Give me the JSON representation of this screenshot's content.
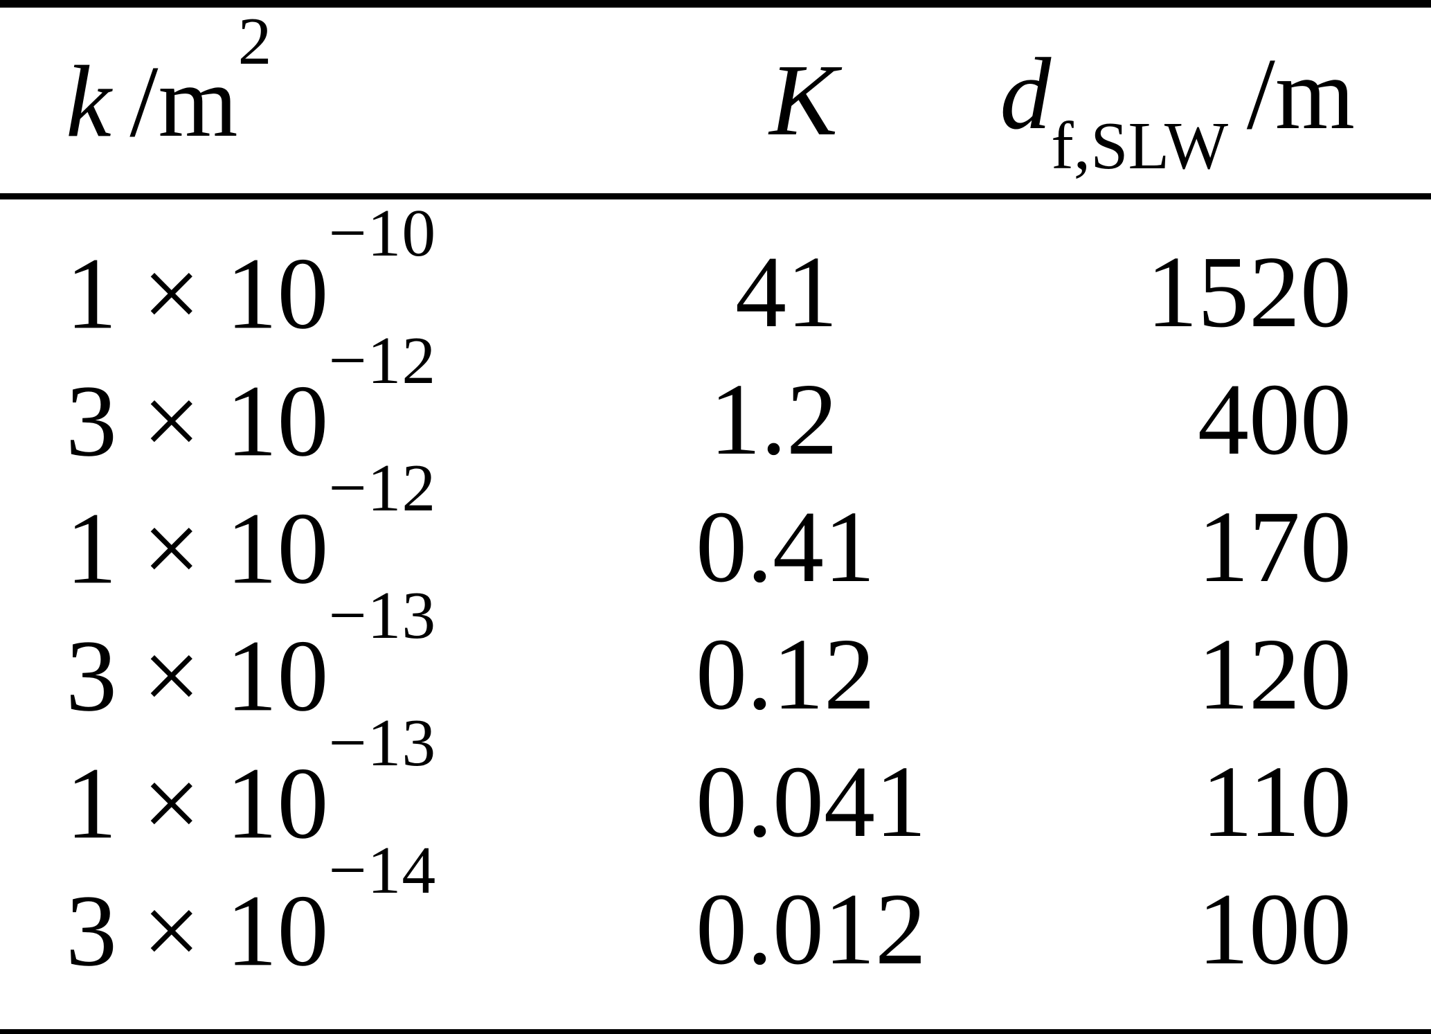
{
  "colors": {
    "text": "#000000",
    "background": "#ffffff"
  },
  "table": {
    "header": {
      "k_symbol": "k",
      "k_unit": "/m",
      "k_unit_exponent": "2",
      "K_symbol": "K",
      "d_symbol": "d",
      "d_subscript": "f,SLW",
      "d_unit": "/m"
    },
    "rows": [
      {
        "k_base": "1 × 10",
        "k_exponent": "−10",
        "K": "41",
        "d": "1520"
      },
      {
        "k_base": "3 × 10",
        "k_exponent": "−12",
        "K": "1.2",
        "d": "400"
      },
      {
        "k_base": "1 × 10",
        "k_exponent": "−12",
        "K": "0.41",
        "d": "170"
      },
      {
        "k_base": "3 × 10",
        "k_exponent": "−13",
        "K": "0.12",
        "d": "120"
      },
      {
        "k_base": "1 × 10",
        "k_exponent": "−13",
        "K": "0.041",
        "d": "110"
      },
      {
        "k_base": "3 × 10",
        "k_exponent": "−14",
        "K": "0.012",
        "d": "100"
      }
    ]
  }
}
